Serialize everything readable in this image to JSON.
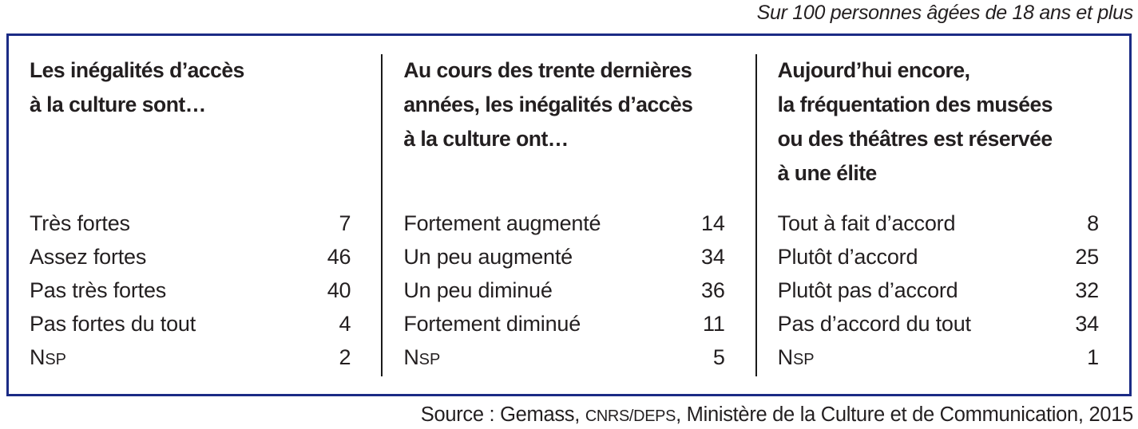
{
  "caption": "Sur 100 personnes âgées de 18 ans et plus",
  "table": {
    "columns": [
      {
        "header_lines": [
          "Les inégalités d’accès",
          "à la culture sont…"
        ],
        "rows": [
          {
            "label": "Très fortes",
            "value": 7
          },
          {
            "label": "Assez fortes",
            "value": 46
          },
          {
            "label": "Pas très fortes",
            "value": 40
          },
          {
            "label": "Pas fortes du tout",
            "value": 4
          },
          {
            "label": "N",
            "label_small": "SP",
            "value": 2
          }
        ]
      },
      {
        "header_lines": [
          "Au cours des trente dernières",
          "années, les inégalités d’accès",
          "à la culture ont…"
        ],
        "rows": [
          {
            "label": "Fortement augmenté",
            "value": 14
          },
          {
            "label": "Un peu augmenté",
            "value": 34
          },
          {
            "label": "Un peu diminué",
            "value": 36
          },
          {
            "label": "Fortement diminué",
            "value": 11
          },
          {
            "label": "N",
            "label_small": "SP",
            "value": 5
          }
        ]
      },
      {
        "header_lines": [
          "Aujourd’hui encore,",
          "la fréquentation des musées",
          "ou des théâtres est réservée",
          "à une élite"
        ],
        "rows": [
          {
            "label": "Tout à fait d’accord",
            "value": 8
          },
          {
            "label": "Plutôt d’accord",
            "value": 25
          },
          {
            "label": "Plutôt pas d’accord",
            "value": 32
          },
          {
            "label": "Pas d’accord du tout",
            "value": 34
          },
          {
            "label": "N",
            "label_small": "SP",
            "value": 1
          }
        ]
      }
    ]
  },
  "source": {
    "prefix": "Source : Gemass, ",
    "caps": "CNRS/DEPS",
    "suffix": ", Ministère de la Culture et de Communication, 2015"
  },
  "colors": {
    "border": "#1b2b85",
    "text": "#231f20",
    "divider": "#1a1a1a"
  }
}
